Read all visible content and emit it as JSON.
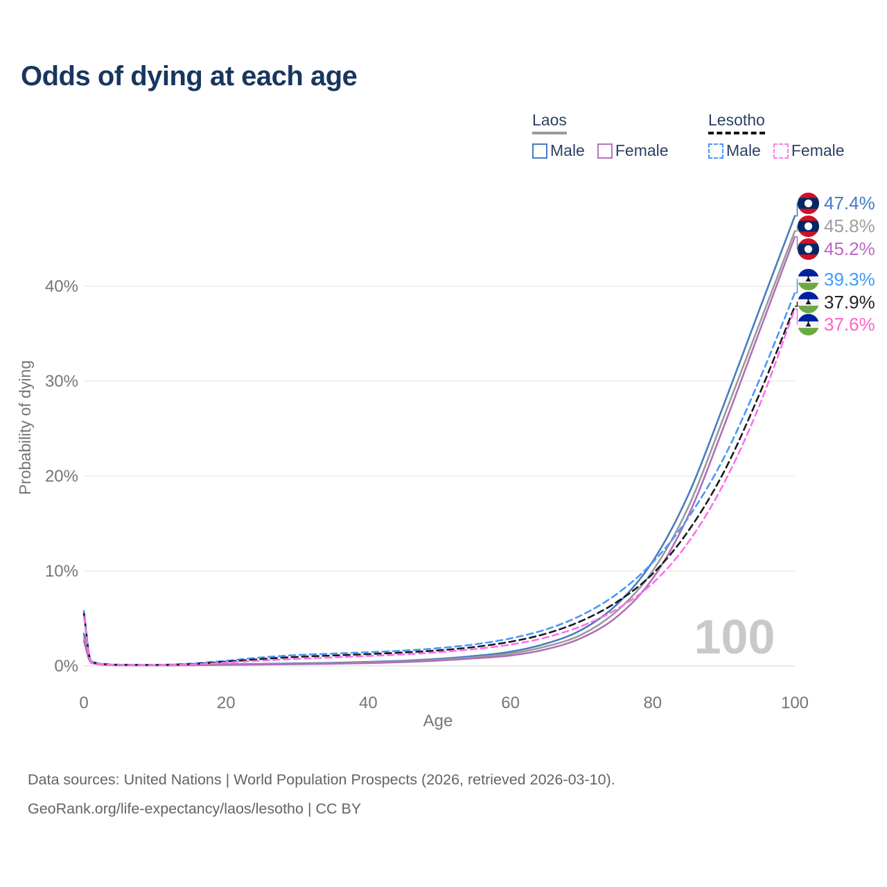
{
  "title": "Odds of dying at each age",
  "legend": {
    "groups": [
      {
        "name": "Laos",
        "line_style": "solid",
        "underline_color": "#9a9a9a",
        "items": [
          {
            "label": "Male",
            "color": "#477bbd"
          },
          {
            "label": "Female",
            "color": "#b474bb"
          }
        ]
      },
      {
        "name": "Lesotho",
        "line_style": "dashed",
        "underline_color": "#141414",
        "items": [
          {
            "label": "Male",
            "color": "#4a97f7"
          },
          {
            "label": "Female",
            "color": "#fd7de9"
          }
        ]
      }
    ]
  },
  "chart_data": {
    "type": "line",
    "title": "Odds of dying at each age",
    "xlabel": "Age",
    "ylabel": "Probability of dying",
    "xlim": [
      0,
      100
    ],
    "ylim": [
      0,
      48
    ],
    "x_ticks": [
      0,
      20,
      40,
      60,
      80,
      100
    ],
    "y_tick_labels": [
      "0%",
      "10%",
      "20%",
      "30%",
      "40%"
    ],
    "grid": "horizontal-only",
    "gridline_color": "#ececec",
    "watermark": "100",
    "watermark_color": "#c9c9c9",
    "axis_text_color": "#757575",
    "legend_position": "top-right",
    "ages": [
      0,
      1,
      2,
      3,
      5,
      10,
      15,
      20,
      25,
      30,
      35,
      40,
      45,
      50,
      55,
      60,
      65,
      70,
      75,
      80,
      85,
      90,
      95,
      100
    ],
    "series": [
      {
        "name": "Laos Male",
        "country": "Laos",
        "sex": "Male",
        "style": "solid",
        "color": "#477bbd",
        "label_color": "#4779c4",
        "flag": "laos",
        "end_label": "47.4%",
        "values": [
          3.4,
          0.45,
          0.22,
          0.15,
          0.1,
          0.08,
          0.12,
          0.18,
          0.22,
          0.27,
          0.33,
          0.42,
          0.55,
          0.75,
          1.05,
          1.5,
          2.35,
          3.8,
          6.5,
          11.0,
          18.0,
          27.5,
          37.5,
          47.4
        ]
      },
      {
        "name": "Laos Both sexes",
        "country": "Laos",
        "sex": "Both",
        "style": "solid",
        "color": "#9a9a9a",
        "label_color": "#9e9e9e",
        "flag": "laos",
        "end_label": "45.8%",
        "values": [
          3.0,
          0.4,
          0.2,
          0.13,
          0.09,
          0.07,
          0.1,
          0.15,
          0.18,
          0.22,
          0.28,
          0.36,
          0.48,
          0.66,
          0.92,
          1.3,
          2.05,
          3.3,
          5.8,
          10.0,
          16.7,
          26.2,
          36.0,
          45.8
        ]
      },
      {
        "name": "Laos Female",
        "country": "Laos",
        "sex": "Female",
        "style": "solid",
        "color": "#b06fb7",
        "label_color": "#ba68c4",
        "flag": "laos",
        "end_label": "45.2%",
        "values": [
          2.6,
          0.35,
          0.18,
          0.12,
          0.08,
          0.06,
          0.08,
          0.12,
          0.15,
          0.18,
          0.23,
          0.3,
          0.41,
          0.57,
          0.8,
          1.1,
          1.75,
          2.95,
          5.2,
          9.2,
          15.8,
          25.2,
          35.2,
          45.2
        ]
      },
      {
        "name": "Lesotho Male",
        "country": "Lesotho",
        "sex": "Male",
        "style": "dashed",
        "color": "#4a97f7",
        "label_color": "#3e9bfd",
        "flag": "lesotho",
        "end_label": "39.3%",
        "values": [
          5.8,
          0.55,
          0.28,
          0.2,
          0.14,
          0.12,
          0.25,
          0.55,
          0.9,
          1.15,
          1.3,
          1.45,
          1.62,
          1.88,
          2.28,
          2.9,
          3.85,
          5.35,
          7.6,
          10.9,
          15.6,
          21.9,
          30.1,
          39.3
        ]
      },
      {
        "name": "Lesotho Both sexes",
        "country": "Lesotho",
        "sex": "Both",
        "style": "dashed",
        "color": "#1a1a1a",
        "label_color": "#222222",
        "flag": "lesotho",
        "end_label": "37.9%",
        "values": [
          5.5,
          0.5,
          0.25,
          0.18,
          0.12,
          0.1,
          0.2,
          0.45,
          0.73,
          0.95,
          1.1,
          1.25,
          1.42,
          1.65,
          2.0,
          2.55,
          3.4,
          4.75,
          6.75,
          9.7,
          14.2,
          20.4,
          28.6,
          37.9
        ]
      },
      {
        "name": "Lesotho Female",
        "country": "Lesotho",
        "sex": "Female",
        "style": "dashed",
        "color": "#fb6ff0",
        "label_color": "#ff62c8",
        "flag": "lesotho",
        "end_label": "37.6%",
        "values": [
          5.2,
          0.45,
          0.23,
          0.16,
          0.11,
          0.09,
          0.16,
          0.35,
          0.56,
          0.74,
          0.9,
          1.05,
          1.22,
          1.45,
          1.78,
          2.25,
          3.0,
          4.2,
          6.0,
          8.7,
          13.0,
          19.2,
          27.4,
          37.6
        ]
      }
    ]
  },
  "flags": {
    "laos": {
      "red": "#ce1126",
      "blue": "#002868",
      "circle": "#ffffff"
    },
    "lesotho": {
      "blue": "#00209f",
      "white": "#f4f4f4",
      "green": "#6ca944",
      "hat": "#141414"
    }
  },
  "footer": {
    "line1": "Data sources: United Nations | World Population Prospects (2026, retrieved 2026-03-10).",
    "line2": "GeoRank.org/life-expectancy/laos/lesotho | CC BY"
  }
}
